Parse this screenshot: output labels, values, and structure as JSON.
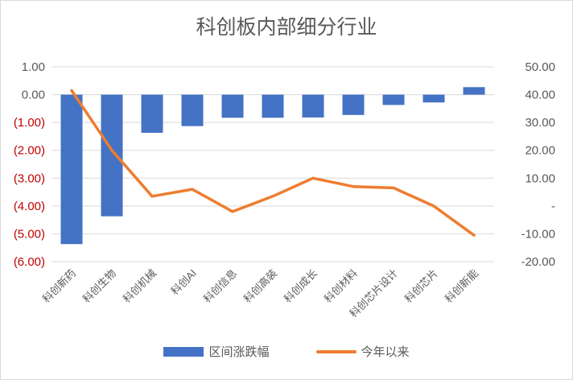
{
  "colors": {
    "bar": "#4472c4",
    "line": "#ed7d31",
    "negative_tick": "#c00000",
    "tick": "#595959",
    "grid": "#d9d9d9"
  },
  "chart_data": {
    "type": "bar",
    "title": "科创板内部细分行业",
    "categories": [
      "科创新药",
      "科创生物",
      "科创机械",
      "科创AI",
      "科创信息",
      "科创高装",
      "科创成长",
      "科创材料",
      "科创芯片设计",
      "科创芯片",
      "科创新能"
    ],
    "series": [
      {
        "name": "区间涨跌幅",
        "type": "bar",
        "axis": "left",
        "values": [
          -5.37,
          -4.37,
          -1.37,
          -1.13,
          -0.83,
          -0.83,
          -0.82,
          -0.73,
          -0.37,
          -0.28,
          0.27
        ]
      },
      {
        "name": "今年以来",
        "type": "line",
        "axis": "right",
        "values": [
          41.5,
          20.0,
          3.5,
          6.0,
          -2.0,
          3.5,
          10.0,
          7.0,
          6.5,
          0.0,
          -10.5
        ]
      }
    ],
    "y_left": {
      "ylim": [
        -6,
        1
      ],
      "ticks": [
        "1.00",
        "0.00",
        "(1.00)",
        "(2.00)",
        "(3.00)",
        "(4.00)",
        "(5.00)",
        "(6.00)"
      ]
    },
    "y_right": {
      "ylim": [
        -20,
        50
      ],
      "ticks": [
        "50.00",
        "40.00",
        "30.00",
        "20.00",
        "10.00",
        "-",
        "-10.00",
        "-20.00"
      ]
    },
    "grid": true,
    "legend": "bottom"
  }
}
